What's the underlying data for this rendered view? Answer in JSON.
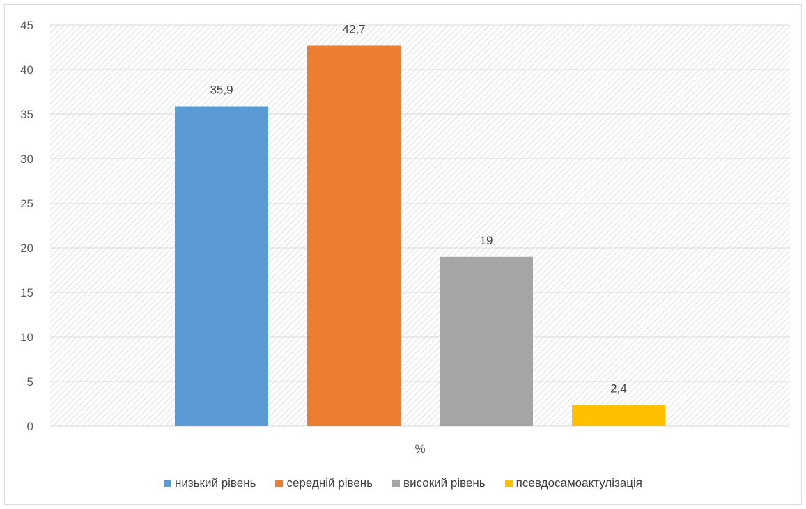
{
  "chart_data": {
    "type": "bar",
    "categories": [
      "%"
    ],
    "series": [
      {
        "name": "низький рівень",
        "values": [
          35.9
        ],
        "label": "35,9",
        "color": "#5B9BD5"
      },
      {
        "name": "середній рівень",
        "values": [
          42.7
        ],
        "label": "42,7",
        "color": "#ED7D31"
      },
      {
        "name": "високий рівень",
        "values": [
          19
        ],
        "label": "19",
        "color": "#A5A5A5"
      },
      {
        "name": "псевдосамоактулізація",
        "values": [
          2.4
        ],
        "label": "2,4",
        "color": "#FFC000"
      }
    ],
    "ylim": [
      0,
      45
    ],
    "yticks": [
      "0",
      "5",
      "10",
      "15",
      "20",
      "25",
      "30",
      "35",
      "40",
      "45"
    ],
    "xlabel": "%",
    "grid": true,
    "legend_position": "bottom"
  }
}
